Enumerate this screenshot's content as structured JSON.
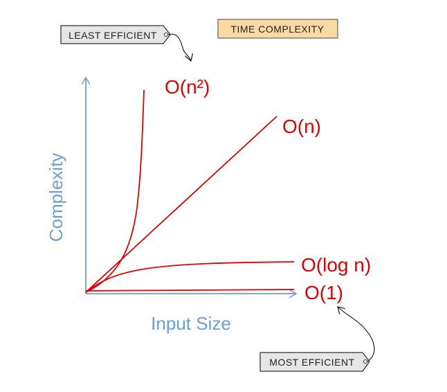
{
  "header": {
    "title": "TIME COMPLEXITY"
  },
  "tags": {
    "top": "LEAST EFFICIENT",
    "bottom": "MOST EFFICIENT"
  },
  "axes": {
    "y_label": "Complexity",
    "x_label": "Input Size"
  },
  "curves": [
    "O(n²)",
    "O(n)",
    "O(log n)",
    "O(1)"
  ]
}
